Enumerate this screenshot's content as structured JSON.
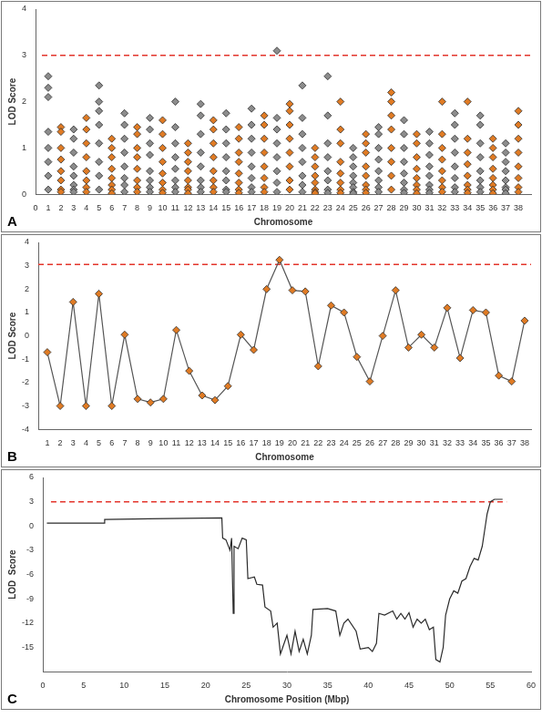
{
  "chart_data": [
    {
      "type": "scatter",
      "panel": "A",
      "x_label": "Chromosome",
      "y_label": "LOD Score",
      "xlim": [
        0,
        39
      ],
      "xticks": [
        0,
        1,
        2,
        3,
        4,
        5,
        6,
        7,
        8,
        9,
        10,
        11,
        12,
        13,
        14,
        15,
        16,
        17,
        18,
        19,
        20,
        21,
        22,
        23,
        24,
        25,
        26,
        27,
        28,
        29,
        30,
        31,
        32,
        33,
        34,
        35,
        36,
        37,
        38
      ],
      "ylim": [
        0,
        4
      ],
      "yticks": [
        0,
        1,
        2,
        3,
        4
      ],
      "grid": false,
      "series": [
        {
          "type": "scatter",
          "marker": "diamond",
          "color": "#8c8c8c",
          "x": [
            1,
            1,
            1,
            1,
            1,
            1,
            1,
            1,
            3,
            3,
            3,
            3,
            3,
            3,
            3,
            3,
            5,
            5,
            5,
            5,
            5,
            5,
            5,
            5,
            7,
            7,
            7,
            7,
            7,
            7,
            7,
            7,
            9,
            9,
            9,
            9,
            9,
            9,
            9,
            9,
            11,
            11,
            11,
            11,
            11,
            11,
            11,
            11,
            13,
            13,
            13,
            13,
            13,
            13,
            13,
            13,
            15,
            15,
            15,
            15,
            15,
            15,
            15,
            15,
            17,
            17,
            17,
            17,
            17,
            17,
            17,
            17,
            19,
            19,
            19,
            19,
            19,
            19,
            19,
            19,
            21,
            21,
            21,
            21,
            21,
            21,
            21,
            21,
            23,
            23,
            23,
            23,
            23,
            23,
            23,
            23,
            25,
            25,
            25,
            25,
            25,
            25,
            25,
            25,
            27,
            27,
            27,
            27,
            27,
            27,
            27,
            27,
            29,
            29,
            29,
            29,
            29,
            29,
            29,
            29,
            31,
            31,
            31,
            31,
            31,
            31,
            31,
            31,
            33,
            33,
            33,
            33,
            33,
            33,
            33,
            33,
            35,
            35,
            35,
            35,
            35,
            35,
            35,
            35,
            37,
            37,
            37,
            37,
            37,
            37,
            37,
            37
          ],
          "values": [
            2.55,
            2.3,
            2.1,
            1.35,
            1.0,
            0.7,
            0.4,
            0.1,
            1.4,
            1.2,
            0.9,
            0.6,
            0.4,
            0.2,
            0.1,
            0.05,
            2.35,
            2.0,
            1.8,
            1.5,
            1.1,
            0.7,
            0.4,
            0.1,
            1.75,
            1.5,
            1.2,
            0.9,
            0.6,
            0.35,
            0.2,
            0.05,
            1.65,
            1.4,
            1.1,
            0.85,
            0.5,
            0.3,
            0.15,
            0.05,
            2.0,
            1.45,
            1.1,
            0.8,
            0.55,
            0.3,
            0.15,
            0.05,
            1.95,
            1.7,
            1.3,
            0.9,
            0.6,
            0.3,
            0.15,
            0.05,
            1.75,
            1.4,
            1.1,
            0.8,
            0.5,
            0.3,
            0.1,
            0.05,
            1.85,
            1.5,
            1.2,
            0.9,
            0.6,
            0.35,
            0.15,
            0.05,
            3.1,
            1.65,
            1.4,
            1.1,
            0.8,
            0.5,
            0.25,
            0.05,
            2.35,
            1.65,
            1.3,
            1.0,
            0.7,
            0.4,
            0.2,
            0.05,
            2.55,
            1.7,
            1.1,
            0.8,
            0.5,
            0.3,
            0.1,
            0.03,
            1.0,
            0.8,
            0.6,
            0.4,
            0.25,
            0.15,
            0.05,
            0.02,
            1.45,
            1.3,
            1.0,
            0.75,
            0.5,
            0.3,
            0.15,
            0.05,
            1.6,
            1.3,
            1.0,
            0.7,
            0.45,
            0.25,
            0.1,
            0.03,
            1.35,
            1.1,
            0.85,
            0.6,
            0.4,
            0.2,
            0.1,
            0.03,
            1.75,
            1.5,
            1.2,
            0.9,
            0.6,
            0.35,
            0.15,
            0.05,
            1.7,
            1.5,
            1.1,
            0.8,
            0.5,
            0.3,
            0.15,
            0.05,
            1.1,
            0.9,
            0.7,
            0.5,
            0.3,
            0.15,
            0.1,
            0.02
          ]
        },
        {
          "type": "scatter",
          "marker": "diamond",
          "color": "#e07b24",
          "x": [
            2,
            2,
            2,
            2,
            2,
            2,
            2,
            2,
            4,
            4,
            4,
            4,
            4,
            4,
            4,
            4,
            6,
            6,
            6,
            6,
            6,
            6,
            6,
            6,
            8,
            8,
            8,
            8,
            8,
            8,
            8,
            8,
            10,
            10,
            10,
            10,
            10,
            10,
            10,
            10,
            12,
            12,
            12,
            12,
            12,
            12,
            12,
            12,
            14,
            14,
            14,
            14,
            14,
            14,
            14,
            14,
            16,
            16,
            16,
            16,
            16,
            16,
            16,
            16,
            18,
            18,
            18,
            18,
            18,
            18,
            18,
            18,
            20,
            20,
            20,
            20,
            20,
            20,
            20,
            20,
            22,
            22,
            22,
            22,
            22,
            22,
            22,
            22,
            24,
            24,
            24,
            24,
            24,
            24,
            24,
            24,
            26,
            26,
            26,
            26,
            26,
            26,
            26,
            26,
            28,
            28,
            28,
            28,
            28,
            28,
            28,
            28,
            30,
            30,
            30,
            30,
            30,
            30,
            30,
            30,
            32,
            32,
            32,
            32,
            32,
            32,
            32,
            32,
            34,
            34,
            34,
            34,
            34,
            34,
            34,
            34,
            36,
            36,
            36,
            36,
            36,
            36,
            36,
            36,
            38,
            38,
            38,
            38,
            38,
            38,
            38,
            38
          ],
          "values": [
            1.45,
            1.35,
            1.0,
            0.75,
            0.5,
            0.3,
            0.1,
            0.05,
            1.65,
            1.4,
            1.1,
            0.8,
            0.5,
            0.3,
            0.15,
            0.05,
            1.2,
            1.0,
            0.8,
            0.55,
            0.35,
            0.2,
            0.1,
            0.02,
            1.45,
            1.3,
            1.0,
            0.8,
            0.55,
            0.3,
            0.15,
            0.05,
            1.6,
            1.3,
            1.0,
            0.7,
            0.45,
            0.25,
            0.1,
            0.03,
            1.1,
            0.9,
            0.7,
            0.5,
            0.3,
            0.15,
            0.1,
            0.02,
            1.6,
            1.4,
            1.1,
            0.8,
            0.5,
            0.3,
            0.15,
            0.05,
            1.45,
            1.2,
            0.9,
            0.7,
            0.45,
            0.25,
            0.1,
            0.03,
            1.7,
            1.5,
            1.2,
            0.9,
            0.6,
            0.35,
            0.15,
            0.05,
            1.95,
            1.8,
            1.5,
            1.2,
            0.9,
            0.6,
            0.3,
            0.1,
            1.0,
            0.8,
            0.6,
            0.4,
            0.25,
            0.1,
            0.05,
            0.02,
            2.0,
            1.4,
            1.1,
            0.7,
            0.45,
            0.25,
            0.1,
            0.03,
            1.3,
            1.1,
            0.9,
            0.6,
            0.4,
            0.2,
            0.1,
            0.03,
            2.2,
            2.0,
            1.7,
            1.4,
            1.0,
            0.7,
            0.4,
            0.1,
            1.3,
            1.1,
            0.8,
            0.55,
            0.35,
            0.2,
            0.1,
            0.02,
            2.0,
            1.3,
            1.0,
            0.75,
            0.5,
            0.3,
            0.15,
            0.05,
            2.0,
            1.2,
            0.9,
            0.65,
            0.4,
            0.2,
            0.1,
            0.03,
            1.2,
            1.0,
            0.8,
            0.55,
            0.35,
            0.2,
            0.1,
            0.02,
            1.8,
            1.5,
            1.2,
            0.9,
            0.6,
            0.35,
            0.15,
            0.05
          ]
        },
        {
          "type": "line",
          "marker": "none",
          "line_style": "dashed",
          "color": "#e3342b",
          "x": [
            0.5,
            39
          ],
          "values": [
            3,
            3
          ]
        }
      ]
    },
    {
      "type": "line",
      "panel": "B",
      "x_label": "Chromosome",
      "y_label": "LOD Score",
      "xlim": [
        0.3,
        38.5
      ],
      "xticks": [
        1,
        2,
        3,
        4,
        5,
        6,
        7,
        8,
        9,
        10,
        11,
        12,
        13,
        14,
        15,
        16,
        17,
        18,
        19,
        20,
        21,
        22,
        23,
        24,
        25,
        26,
        27,
        28,
        29,
        30,
        31,
        32,
        33,
        34,
        35,
        36,
        37,
        38
      ],
      "ylim": [
        -4,
        4
      ],
      "yticks": [
        -4,
        -3,
        -2,
        -1,
        0,
        1,
        2,
        3,
        4
      ],
      "grid": false,
      "series": [
        {
          "type": "line",
          "marker": "diamond",
          "color": "#e07b24",
          "x": [
            1,
            2,
            3,
            4,
            5,
            6,
            7,
            8,
            9,
            10,
            11,
            12,
            13,
            14,
            15,
            16,
            17,
            18,
            19,
            20,
            21,
            22,
            23,
            24,
            25,
            26,
            27,
            28,
            29,
            30,
            31,
            32,
            33,
            34,
            35,
            36,
            37,
            38
          ],
          "values": [
            -0.7,
            -3.0,
            1.45,
            -3.0,
            1.8,
            -3.0,
            0.05,
            -2.7,
            -2.85,
            -2.7,
            0.25,
            -1.5,
            -2.55,
            -2.75,
            -2.15,
            0.05,
            -0.6,
            2.0,
            3.25,
            1.95,
            1.9,
            -1.3,
            1.3,
            1.0,
            -0.9,
            -1.95,
            0.0,
            1.95,
            -0.5,
            0.05,
            -0.5,
            1.2,
            -0.95,
            1.1,
            1.0,
            -1.7,
            -1.95,
            0.65
          ]
        },
        {
          "type": "line",
          "marker": "none",
          "line_style": "dashed",
          "color": "#e3342b",
          "x": [
            0.3,
            38.5
          ],
          "values": [
            3.05,
            3.05
          ]
        }
      ]
    },
    {
      "type": "line",
      "panel": "C",
      "x_label": "Chromosome Position (Mbp)",
      "y_label": "LOD  Score",
      "xlim": [
        0,
        60
      ],
      "xticks": [
        0,
        5,
        10,
        15,
        20,
        25,
        30,
        35,
        40,
        45,
        50,
        55,
        60
      ],
      "ylim": [
        -18,
        6
      ],
      "yticks": [
        -15,
        -12,
        -9,
        -6,
        -3,
        0,
        3,
        6
      ],
      "grid": false,
      "series": [
        {
          "type": "line",
          "marker": "none",
          "color": "#2b2b2b",
          "x": [
            0.5,
            7.5,
            7.6,
            13,
            22,
            22.1,
            22.5,
            23,
            23.2,
            23.4,
            23.5,
            24,
            24.5,
            25,
            25.2,
            26,
            26.3,
            27,
            27.3,
            28,
            28.3,
            28.8,
            29.2,
            30,
            30.5,
            31,
            31.5,
            32,
            32.5,
            33,
            33.2,
            35,
            36,
            36.5,
            37,
            37.5,
            38.5,
            39,
            40,
            40.5,
            41,
            41.3,
            42,
            43,
            43.5,
            44,
            44.5,
            45,
            45.5,
            46,
            46.5,
            47,
            47.5,
            48,
            48.3,
            48.8,
            49.2,
            49.5,
            50,
            50.5,
            51,
            51.5,
            52,
            52.5,
            53,
            53.5,
            54,
            54.3,
            54.6,
            55,
            55.5,
            56.5
          ],
          "values": [
            0.35,
            0.35,
            0.8,
            0.9,
            1.0,
            -1.5,
            -1.7,
            -3.0,
            -1.5,
            -10.8,
            -2.5,
            -2.8,
            -1.5,
            -1.7,
            -6.5,
            -6.3,
            -7.2,
            -7.3,
            -10,
            -10.5,
            -12.5,
            -12,
            -15.8,
            -13.5,
            -15.8,
            -13,
            -15.5,
            -14,
            -15.8,
            -13.5,
            -10.3,
            -10.2,
            -10.5,
            -13.5,
            -12,
            -11.5,
            -13,
            -15.2,
            -15,
            -15.5,
            -14.5,
            -10.8,
            -11,
            -10.5,
            -11.5,
            -10.8,
            -11.5,
            -10.7,
            -12.5,
            -11.5,
            -12,
            -11.5,
            -12.8,
            -12.5,
            -16.5,
            -16.8,
            -15,
            -11,
            -9,
            -8,
            -8.3,
            -6.8,
            -6.5,
            -5,
            -4,
            -4.2,
            -2.5,
            -0.5,
            1.5,
            3.0,
            3.3,
            3.3
          ]
        },
        {
          "type": "line",
          "marker": "none",
          "line_style": "dashed",
          "color": "#e3342b",
          "x": [
            1,
            57
          ],
          "values": [
            3,
            3
          ]
        }
      ]
    }
  ]
}
